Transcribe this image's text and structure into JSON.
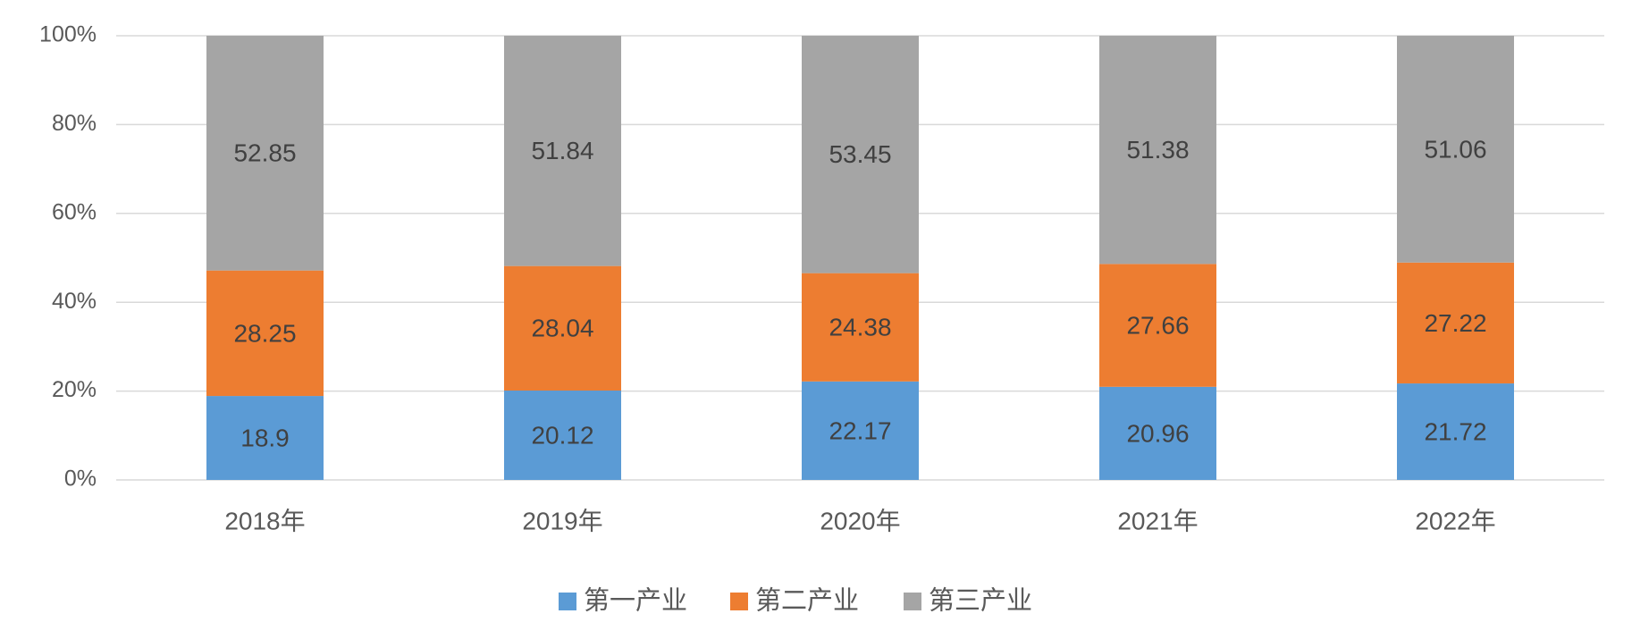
{
  "chart_data": {
    "type": "bar",
    "stacked": true,
    "percent_stacked": true,
    "categories": [
      "2018年",
      "2019年",
      "2020年",
      "2021年",
      "2022年"
    ],
    "series": [
      {
        "name": "第一产业",
        "color": "#5B9BD5",
        "values": [
          18.9,
          20.12,
          22.17,
          20.96,
          21.72
        ]
      },
      {
        "name": "第二产业",
        "color": "#ED7D31",
        "values": [
          28.25,
          28.04,
          24.38,
          27.66,
          27.22
        ]
      },
      {
        "name": "第三产业",
        "color": "#A5A5A5",
        "values": [
          52.85,
          51.84,
          53.45,
          51.38,
          51.06
        ]
      }
    ],
    "yticks": [
      "0%",
      "20%",
      "40%",
      "60%",
      "80%",
      "100%"
    ],
    "ylim": [
      0,
      100
    ],
    "grid": true,
    "legend_position": "bottom",
    "title": "",
    "xlabel": "",
    "ylabel": ""
  }
}
